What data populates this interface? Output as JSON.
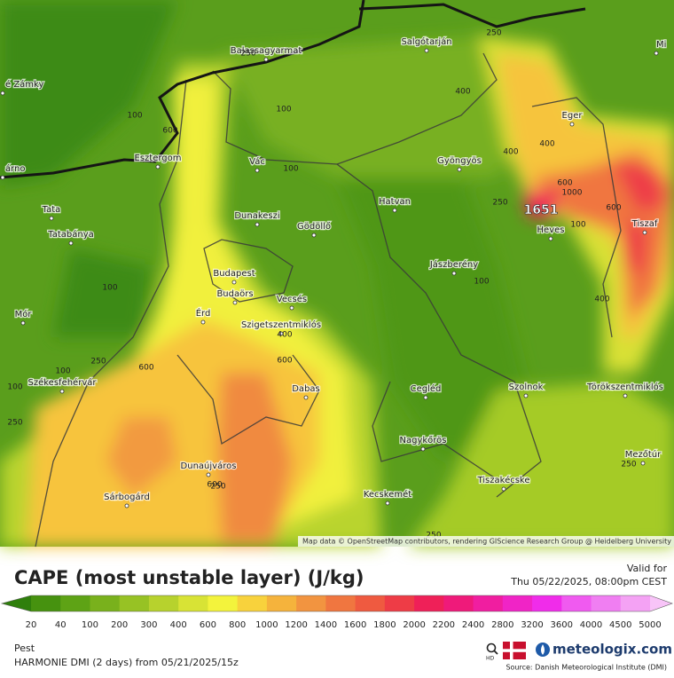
{
  "map": {
    "cities": [
      "é Zámky",
      "árno",
      "Balassagyarmat",
      "Salgótarján",
      "Mi",
      "Eger",
      "Esztergom",
      "Vác",
      "Gyöngyös",
      "Tata",
      "Hatvan",
      "Dunakeszi",
      "Gödöllő",
      "Heves",
      "Tiszaf",
      "Tatabánya",
      "Jászberény",
      "Budapest",
      "Budaörs",
      "Vecsés",
      "Mór",
      "Érd",
      "Szigetszentmiklós",
      "Székesfehérvár",
      "Dabas",
      "Cegléd",
      "Szolnok",
      "Törökszentmiklós",
      "Nagykőrös",
      "Mezőtúr",
      "Dunaújváros",
      "Tiszakécske",
      "Kecskemét",
      "Sárbogárd"
    ],
    "contour_labels": [
      250,
      250,
      100,
      600,
      100,
      400,
      400,
      400,
      100,
      250,
      600,
      1000,
      600,
      100,
      100,
      100,
      100,
      400,
      400,
      600,
      250,
      600,
      100,
      250,
      250,
      600,
      250,
      250
    ],
    "max_label": "1651",
    "attribution": "Map data © OpenStreetMap contributors, rendering GIScience Research Group @ Heidelberg University"
  },
  "legend": {
    "title": "CAPE (most unstable layer) (J/kg)",
    "valid_label": "Valid for",
    "valid_time": "Thu 05/22/2025, 08:00pm CEST",
    "levels": [
      20,
      40,
      100,
      200,
      300,
      400,
      600,
      800,
      1000,
      1200,
      1400,
      1600,
      1800,
      2000,
      2200,
      2400,
      2800,
      3200,
      3600,
      4000,
      4500,
      5000
    ],
    "colors": [
      "#2f7f0c",
      "#46920f",
      "#5ea315",
      "#79b11c",
      "#97c224",
      "#b7d22d",
      "#d8e335",
      "#f3f33c",
      "#f8d23c",
      "#f5b33c",
      "#f29440",
      "#f07640",
      "#ef5a40",
      "#ee3c46",
      "#ef2058",
      "#ef1a7a",
      "#f01ea0",
      "#f024c6",
      "#f02cea",
      "#f05af0",
      "#f07ef2",
      "#f4a2f4",
      "#f8c4f8"
    ]
  },
  "footer": {
    "location": "Pest",
    "model": "HARMONIE DMI (2 days)  from  05/21/2025/15z",
    "hd": "HD",
    "brand": "meteologix.com",
    "source": "Source: Danish Meteorological Institute (DMI)"
  }
}
